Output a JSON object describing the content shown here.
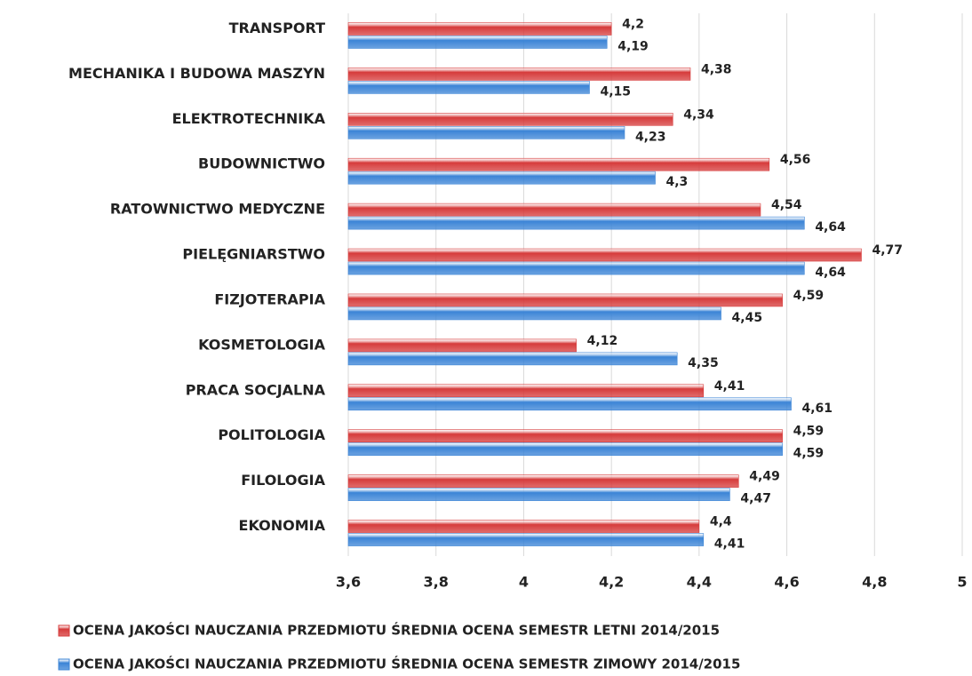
{
  "chart_data": {
    "type": "bar",
    "orientation": "horizontal",
    "categories": [
      "TRANSPORT",
      "MECHANIKA I BUDOWA MASZYN",
      "ELEKTROTECHNIKA",
      "BUDOWNICTWO",
      "RATOWNICTWO MEDYCZNE",
      "PIELĘGNIARSTWO",
      "FIZJOTERAPIA",
      "KOSMETOLOGIA",
      "PRACA SOCJALNA",
      "POLITOLOGIA",
      "FILOLOGIA",
      "EKONOMIA"
    ],
    "series": [
      {
        "name": "OCENA JAKOŚCI NAUCZANIA PRZEDMIOTU ŚREDNIA OCENA SEMESTR LETNI 2014/2015",
        "color": "#d63b3b",
        "values": [
          4.2,
          4.38,
          4.34,
          4.56,
          4.54,
          4.77,
          4.59,
          4.12,
          4.41,
          4.59,
          4.49,
          4.4
        ],
        "value_labels": [
          "4,2",
          "4,38",
          "4,34",
          "4,56",
          "4,54",
          "4,77",
          "4,59",
          "4,12",
          "4,41",
          "4,59",
          "4,49",
          "4,4"
        ]
      },
      {
        "name": "OCENA JAKOŚCI NAUCZANIA PRZEDMIOTU ŚREDNIA OCENA SEMESTR ZIMOWY 2014/2015",
        "color": "#3b84d6",
        "values": [
          4.19,
          4.15,
          4.23,
          4.3,
          4.64,
          4.64,
          4.45,
          4.35,
          4.61,
          4.59,
          4.47,
          4.41
        ],
        "value_labels": [
          "4,19",
          "4,15",
          "4,23",
          "4,3",
          "4,64",
          "4,64",
          "4,45",
          "4,35",
          "4,61",
          "4,59",
          "4,47",
          "4,41"
        ]
      }
    ],
    "xlim": [
      3.6,
      5
    ],
    "xticks": [
      {
        "value": 3.6,
        "label": "3,6"
      },
      {
        "value": 3.8,
        "label": "3,8"
      },
      4,
      {
        "value": 4.2,
        "label": "4,2"
      },
      {
        "value": 4.4,
        "label": "4,4"
      },
      {
        "value": 4.6,
        "label": "4,6"
      },
      {
        "value": 4.8,
        "label": "4,8"
      },
      5
    ],
    "grid": true,
    "legend": "bottom"
  }
}
